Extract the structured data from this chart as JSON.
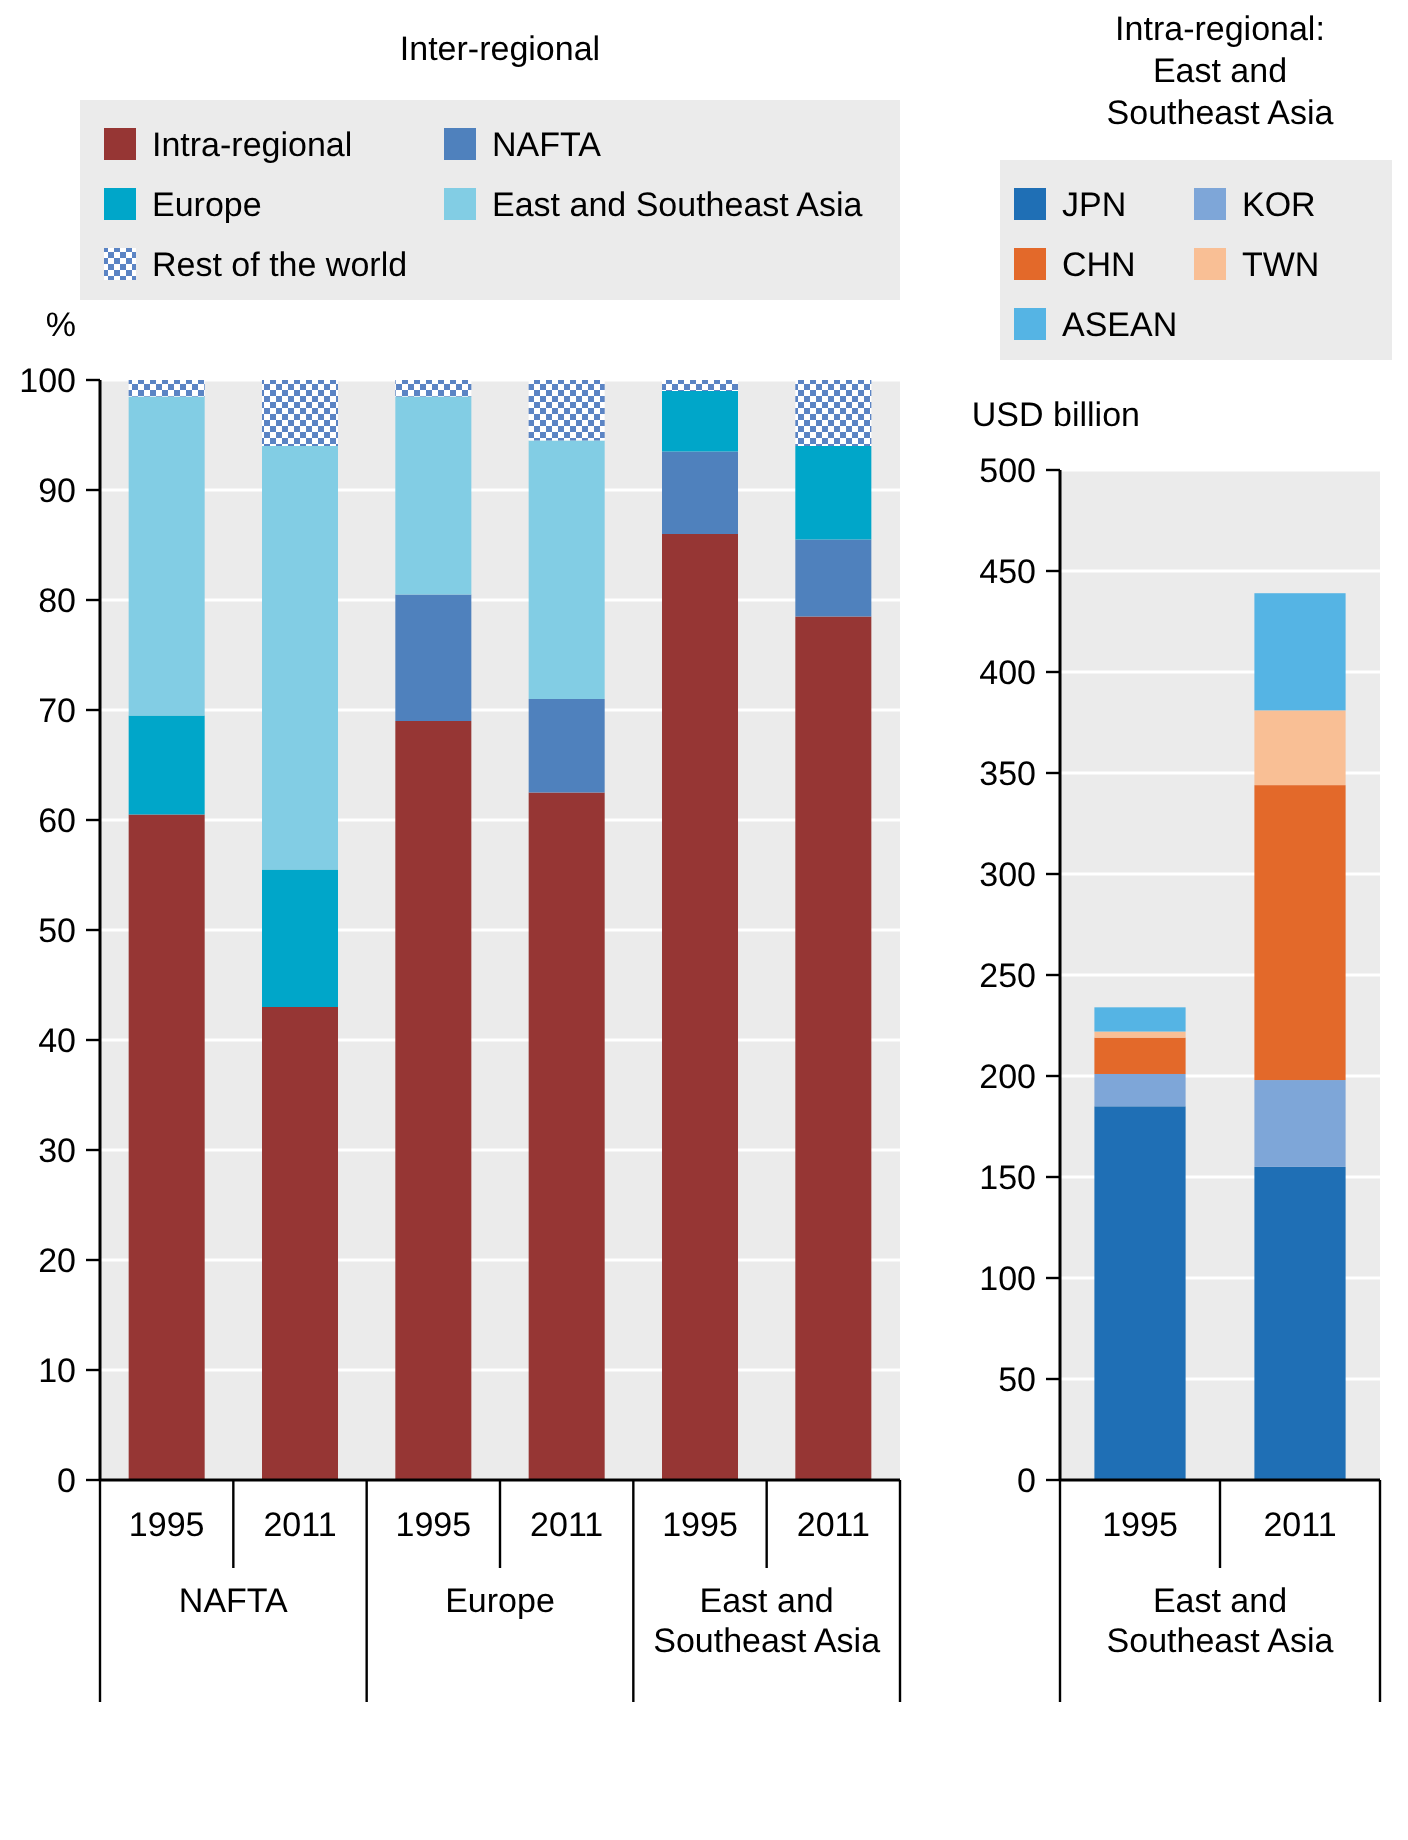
{
  "chart_data": [
    {
      "type": "bar",
      "stacked": true,
      "title": "Inter-regional",
      "ylabel": "%",
      "categories": [
        "1995",
        "2011",
        "1995",
        "2011",
        "1995",
        "2011"
      ],
      "annotations": [
        "NAFTA",
        "Europe",
        "East and Southeast Asia"
      ],
      "ylim": [
        0,
        100
      ],
      "yticks": [
        0,
        10,
        20,
        30,
        40,
        50,
        60,
        70,
        80,
        90,
        100
      ],
      "grid": "y",
      "legend": "top",
      "series": [
        {
          "name": "Intra-regional",
          "color": "#963634",
          "values": [
            60.5,
            43,
            69,
            62.5,
            86,
            78.5
          ]
        },
        {
          "name": "NAFTA",
          "color": "#4f81bd",
          "values": [
            null,
            null,
            11.5,
            8.5,
            7.5,
            7
          ]
        },
        {
          "name": "Europe",
          "color": "#00a6c9",
          "values": [
            9,
            12.5,
            null,
            null,
            5.5,
            8.5
          ]
        },
        {
          "name": "East and Southeast Asia",
          "color": "#82cde4",
          "values": [
            29,
            38.5,
            18,
            23.5,
            null,
            null
          ]
        },
        {
          "name": "Rest of the world",
          "color": "#5b84c4",
          "values": [
            1.5,
            6,
            1.5,
            5.5,
            1,
            6
          ]
        }
      ]
    },
    {
      "type": "bar",
      "stacked": true,
      "title": "Intra-regional: East and Southeast Asia",
      "ylabel": "USD billion",
      "categories": [
        "1995",
        "2011"
      ],
      "annotations": [
        "East and Southeast Asia"
      ],
      "ylim": [
        0,
        500
      ],
      "yticks": [
        0,
        50,
        100,
        150,
        200,
        250,
        300,
        350,
        400,
        450,
        500
      ],
      "grid": "y",
      "legend": "top",
      "series": [
        {
          "name": "JPN",
          "color": "#1f6fb5",
          "values": [
            185,
            155
          ]
        },
        {
          "name": "KOR",
          "color": "#7ea6d8",
          "values": [
            16,
            43
          ]
        },
        {
          "name": "CHN",
          "color": "#e3692a",
          "values": [
            18,
            146
          ]
        },
        {
          "name": "TWN",
          "color": "#f9bf95",
          "values": [
            3,
            37
          ]
        },
        {
          "name": "ASEAN",
          "color": "#55b4e4",
          "values": [
            12,
            58
          ]
        }
      ]
    }
  ]
}
